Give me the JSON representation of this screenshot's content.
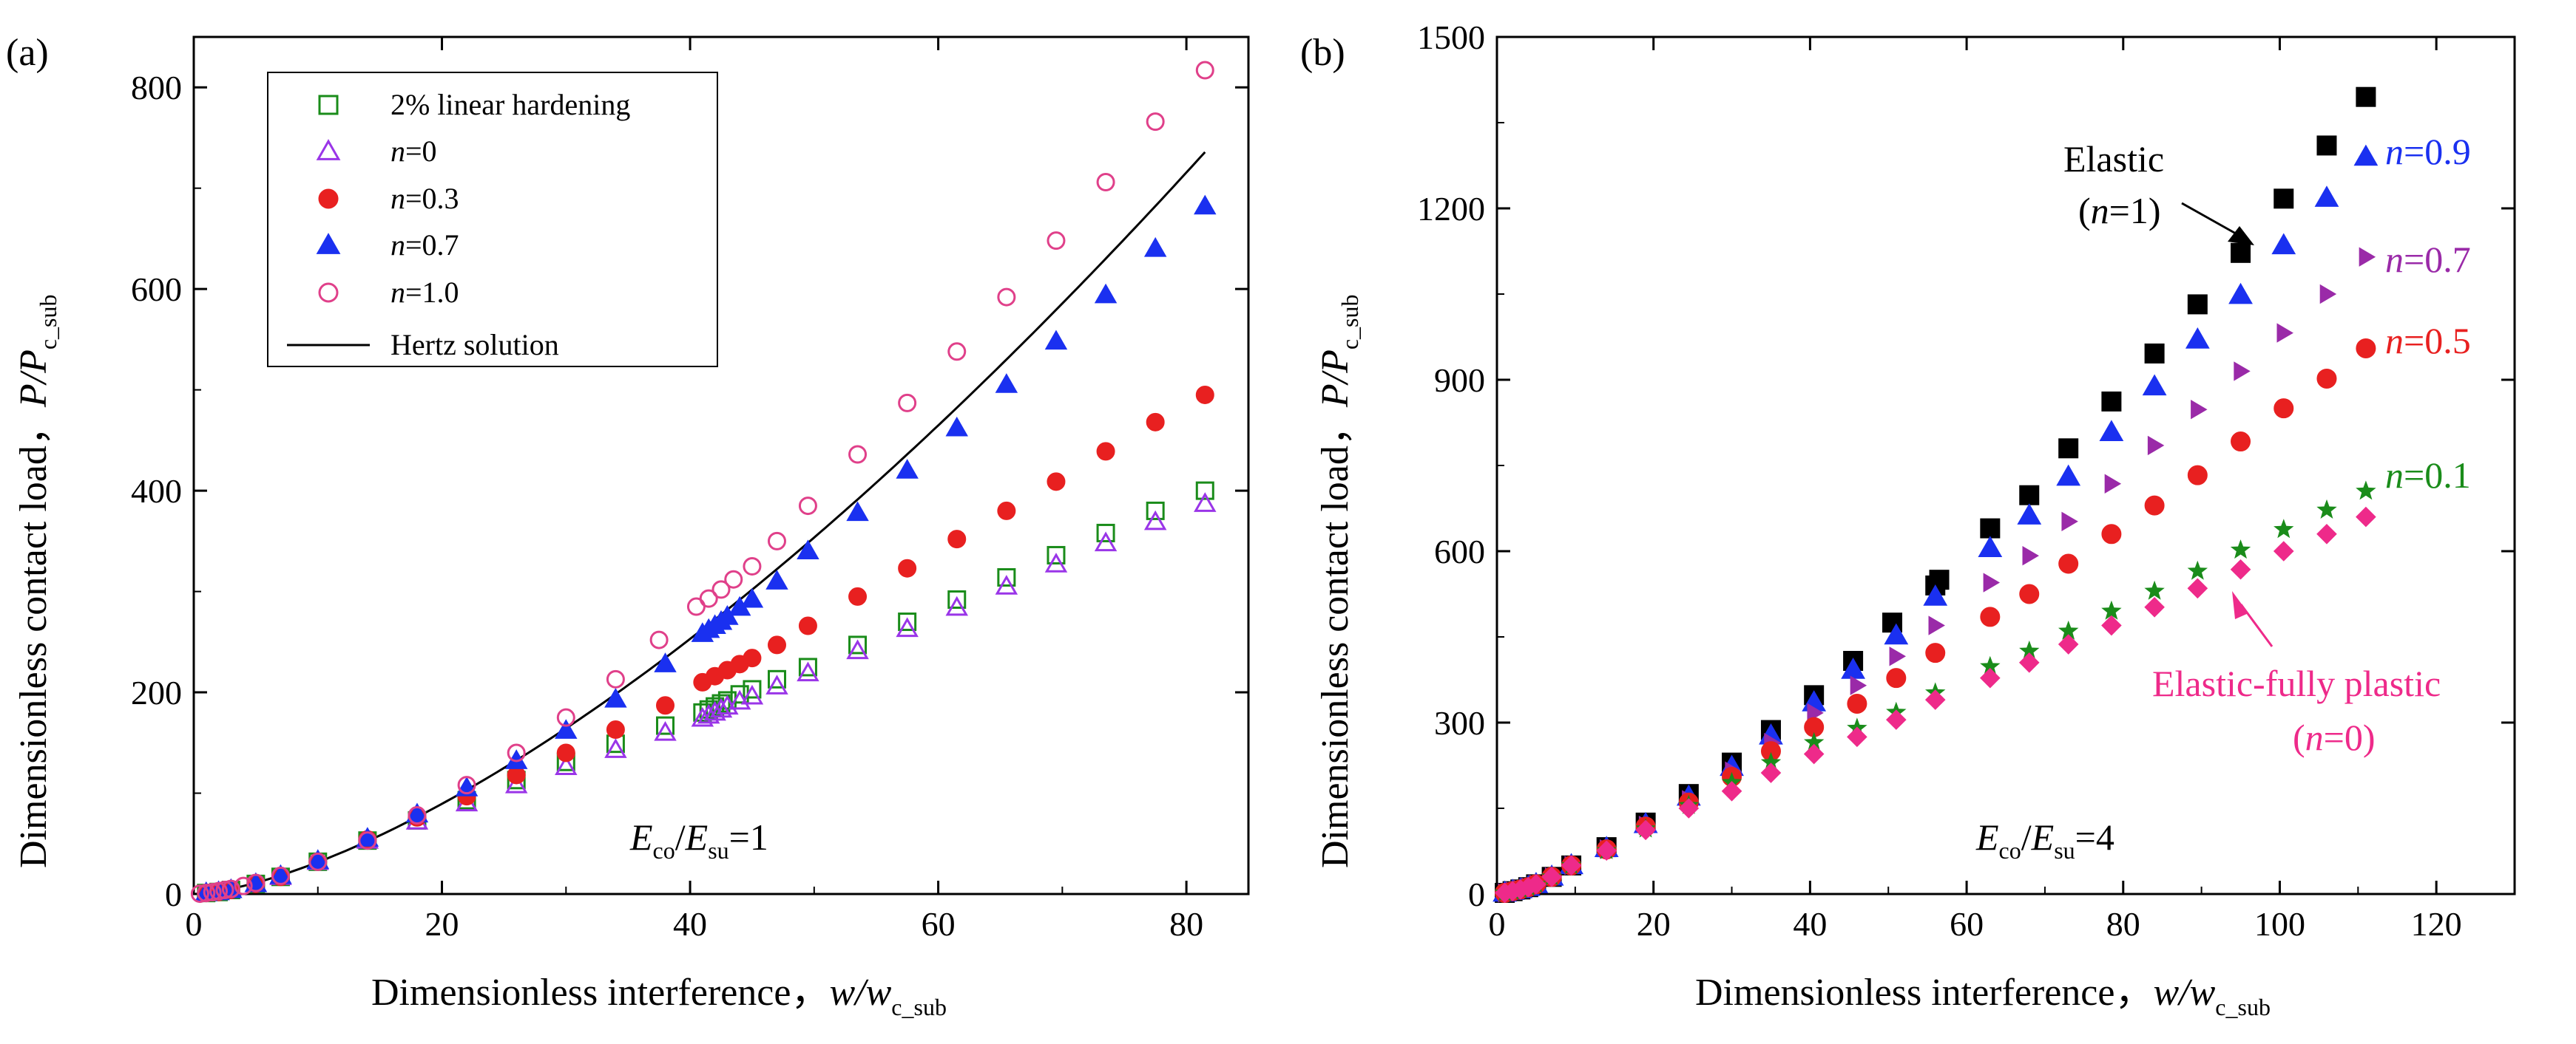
{
  "chart_data": [
    {
      "panel_label": "(a)",
      "type": "scatter",
      "xlabel": "Dimensionless interference，",
      "xlabel_var": "w/w",
      "xlabel_sub": "c_sub",
      "ylabel": "Dimensionless contact load，",
      "ylabel_var": "P/P",
      "ylabel_sub": "c_sub",
      "xlim": [
        0,
        85
      ],
      "ylim": [
        0,
        850
      ],
      "xticks": [
        "0",
        "20",
        "40",
        "60",
        "80"
      ],
      "xtick_values": [
        0,
        20,
        40,
        60,
        80
      ],
      "yticks": [
        "0",
        "200",
        "400",
        "600",
        "800"
      ],
      "ytick_values": [
        0,
        200,
        400,
        600,
        800
      ],
      "ratio_annotation": {
        "base1": "E",
        "sub1": "co",
        "sep": "/",
        "base2": "E",
        "sub2": "su",
        "tail": "=1"
      },
      "legend_position": "top-left",
      "series": [
        {
          "name": "2% linear hardening",
          "marker": "open-square",
          "color": "#1a8c1a",
          "x": [
            1,
            2,
            3,
            5,
            7,
            10,
            14,
            18,
            22,
            26,
            30,
            34,
            38,
            41,
            41.5,
            42,
            42.5,
            43,
            44,
            45,
            47,
            49.5,
            53.5,
            57.5,
            61.5,
            65.5,
            69.5,
            73.5,
            77.5,
            81.5
          ],
          "y": [
            1,
            2,
            4,
            10,
            17,
            32,
            53,
            73,
            93,
            113,
            131,
            149,
            167,
            180,
            183,
            186,
            189,
            192,
            198,
            203,
            213,
            225,
            247,
            270,
            292,
            314,
            336,
            358,
            380,
            400
          ]
        },
        {
          "name": "n=0",
          "marker": "open-triangle-up",
          "color": "#9a35e8",
          "x": [
            1,
            2,
            3,
            5,
            7,
            10,
            14,
            18,
            22,
            26,
            30,
            34,
            38,
            41,
            41.5,
            42,
            42.5,
            43,
            44,
            45,
            47,
            49.5,
            53.5,
            57.5,
            61.5,
            65.5,
            69.5,
            73.5,
            77.5,
            81.5
          ],
          "y": [
            1,
            2,
            4,
            10,
            17,
            32,
            53,
            72,
            90,
            108,
            126,
            143,
            160,
            174,
            177,
            180,
            183,
            186,
            191,
            196,
            206,
            219,
            241,
            263,
            284,
            305,
            327,
            348,
            369,
            387
          ]
        },
        {
          "name": "n=0.3",
          "marker": "filled-circle",
          "color": "#e82020",
          "x": [
            1,
            2,
            3,
            5,
            7,
            10,
            14,
            18,
            22,
            26,
            30,
            34,
            38,
            41,
            42,
            43,
            44,
            45,
            47,
            49.5,
            53.5,
            57.5,
            61.5,
            65.5,
            69.5,
            73.5,
            77.5,
            81.5
          ],
          "y": [
            1,
            2,
            4,
            10,
            17,
            32,
            54,
            76,
            97,
            118,
            140,
            163,
            187,
            210,
            216,
            222,
            228,
            234,
            247,
            266,
            295,
            323,
            352,
            380,
            409,
            439,
            468,
            495
          ]
        },
        {
          "name": "n=0.7",
          "marker": "filled-triangle-up",
          "color": "#1a30f0",
          "x": [
            1,
            2,
            3,
            5,
            7,
            10,
            14,
            18,
            22,
            26,
            30,
            34,
            38,
            41,
            41.5,
            42,
            42.5,
            43,
            44,
            45,
            47,
            49.5,
            53.5,
            57.5,
            61.5,
            65.5,
            69.5,
            73.5,
            77.5,
            81.5
          ],
          "y": [
            1,
            2,
            4,
            10,
            18,
            33,
            55,
            79,
            105,
            132,
            162,
            193,
            228,
            258,
            262,
            266,
            270,
            275,
            284,
            292,
            310,
            340,
            378,
            420,
            462,
            505,
            548,
            594,
            640,
            682
          ]
        },
        {
          "name": "n=1.0",
          "marker": "open-circle",
          "color": "#e0408a",
          "x": [
            0.5,
            1,
            1.5,
            2,
            2.5,
            3,
            4,
            5,
            7,
            10,
            14,
            18,
            22,
            26,
            30,
            34,
            37.5,
            40.5,
            41.5,
            42.5,
            43.5,
            45,
            47,
            49.5,
            53.5,
            57.5,
            61.5,
            65.5,
            69.5,
            73.5,
            77.5,
            81.5
          ],
          "y": [
            0.3,
            1,
            1.8,
            2.8,
            4,
            5,
            8,
            11,
            18,
            32,
            53,
            78,
            108,
            140,
            175,
            213,
            252,
            285,
            293,
            302,
            312,
            325,
            350,
            385,
            436,
            487,
            538,
            592,
            648,
            706,
            766,
            817
          ]
        },
        {
          "name": "Hertz solution",
          "marker": "line",
          "color": "#000000",
          "formula": "P = w^1.5",
          "xrange": [
            0,
            81.5
          ]
        }
      ]
    },
    {
      "panel_label": "(b)",
      "type": "scatter",
      "xlabel": "Dimensionless interference，",
      "xlabel_var": "w/w",
      "xlabel_sub": "c_sub",
      "ylabel": "Dimensionless contact load，",
      "ylabel_var": "P/P",
      "ylabel_sub": "c_sub",
      "xlim": [
        0,
        130
      ],
      "ylim": [
        0,
        1500
      ],
      "xticks": [
        "0",
        "20",
        "40",
        "60",
        "80",
        "100",
        "120"
      ],
      "xtick_values": [
        0,
        20,
        40,
        60,
        80,
        100,
        120
      ],
      "yticks": [
        "0",
        "300",
        "600",
        "900",
        "1200",
        "1500"
      ],
      "ytick_values": [
        0,
        300,
        600,
        900,
        1200,
        1500
      ],
      "ratio_annotation": {
        "base1": "E",
        "sub1": "co",
        "sep": "/",
        "base2": "E",
        "sub2": "su",
        "tail": "=4"
      },
      "series": [
        {
          "name": "Elastic (n=1)",
          "marker": "filled-square",
          "color": "#000000",
          "label": "n=1",
          "x": [
            1,
            2,
            3,
            4,
            5,
            7,
            9.5,
            14,
            19,
            24.5,
            30,
            35,
            40.5,
            45.5,
            50.5,
            56,
            56.5,
            63,
            68,
            73,
            78.5,
            84,
            89.5,
            95,
            100.5,
            106,
            111
          ],
          "y": [
            2,
            5,
            8,
            12,
            17,
            30,
            50,
            82,
            125,
            175,
            230,
            287,
            348,
            408,
            475,
            540,
            550,
            640,
            698,
            780,
            862,
            946,
            1032,
            1122,
            1217,
            1310,
            1395
          ]
        },
        {
          "name": "n=0.9",
          "marker": "filled-triangle-up",
          "color": "#1a30f0",
          "label": "n=0.9",
          "x": [
            1,
            2,
            3,
            4,
            5,
            7,
            9.5,
            14,
            19,
            24.5,
            30,
            35,
            40.5,
            45.5,
            51,
            56,
            63,
            68,
            73,
            78.5,
            84,
            89.5,
            95,
            100.5,
            106,
            111
          ],
          "y": [
            2,
            5,
            8,
            12,
            17,
            30,
            50,
            80,
            122,
            170,
            222,
            277,
            335,
            392,
            452,
            520,
            605,
            662,
            730,
            808,
            888,
            970,
            1048,
            1135,
            1218,
            1290
          ]
        },
        {
          "name": "n=0.7",
          "marker": "filled-triangle-right",
          "color": "#9a2aa8",
          "label": "n=0.7",
          "x": [
            1,
            2,
            3,
            4,
            5,
            7,
            9.5,
            14,
            19,
            24.5,
            30,
            35,
            40.5,
            46,
            51,
            56,
            63,
            68,
            73,
            78.5,
            84,
            89.5,
            95,
            100.5,
            106,
            111
          ],
          "y": [
            2,
            5,
            8,
            12,
            17,
            30,
            50,
            79,
            120,
            165,
            215,
            265,
            317,
            365,
            416,
            470,
            545,
            592,
            652,
            718,
            785,
            848,
            915,
            982,
            1050,
            1115
          ]
        },
        {
          "name": "n=0.5",
          "marker": "filled-circle",
          "color": "#e82020",
          "label": "n=0.5",
          "x": [
            1,
            2,
            3,
            4,
            5,
            7,
            9.5,
            14,
            19,
            24.5,
            30,
            35,
            40.5,
            46,
            51,
            56,
            63,
            68,
            73,
            78.5,
            84,
            89.5,
            95,
            100.5,
            106,
            111
          ],
          "y": [
            2,
            5,
            8,
            12,
            17,
            30,
            50,
            78,
            118,
            160,
            205,
            250,
            292,
            333,
            378,
            422,
            485,
            525,
            578,
            630,
            680,
            733,
            792,
            850,
            902,
            955
          ]
        },
        {
          "name": "n=0.1",
          "marker": "filled-star",
          "color": "#1a8c1a",
          "label": "n=0.1",
          "x": [
            1,
            2,
            3,
            4,
            5,
            7,
            9.5,
            14,
            19,
            24.5,
            30,
            35,
            40.5,
            46,
            51,
            56,
            63,
            68,
            73,
            78.5,
            84,
            89.5,
            95,
            100.5,
            106,
            111
          ],
          "y": [
            2,
            5,
            8,
            12,
            17,
            30,
            50,
            76,
            114,
            155,
            195,
            230,
            265,
            290,
            318,
            352,
            398,
            425,
            460,
            495,
            530,
            565,
            602,
            638,
            672,
            705
          ]
        },
        {
          "name": "Elastic-fully plastic (n=0)",
          "marker": "filled-diamond",
          "color": "#ee2a8a",
          "label": "n=0",
          "x": [
            1,
            2,
            3,
            4,
            5,
            7,
            9.5,
            14,
            19,
            24.5,
            30,
            35,
            40.5,
            46,
            51,
            56,
            63,
            68,
            73,
            78.5,
            84,
            89.5,
            95,
            100.5,
            106,
            111
          ],
          "y": [
            2,
            5,
            8,
            12,
            17,
            30,
            50,
            76,
            112,
            150,
            180,
            212,
            245,
            275,
            305,
            340,
            378,
            405,
            437,
            470,
            502,
            535,
            568,
            600,
            630,
            660
          ]
        }
      ],
      "annotations": {
        "elastic_title": "Elastic",
        "elastic_n": "(n=1)",
        "n09": "n=0.9",
        "n07": "n=0.7",
        "n05": "n=0.5",
        "n01": "n=0.1",
        "efp_title": "Elastic-fully plastic",
        "efp_n": "(n=0)"
      }
    }
  ]
}
